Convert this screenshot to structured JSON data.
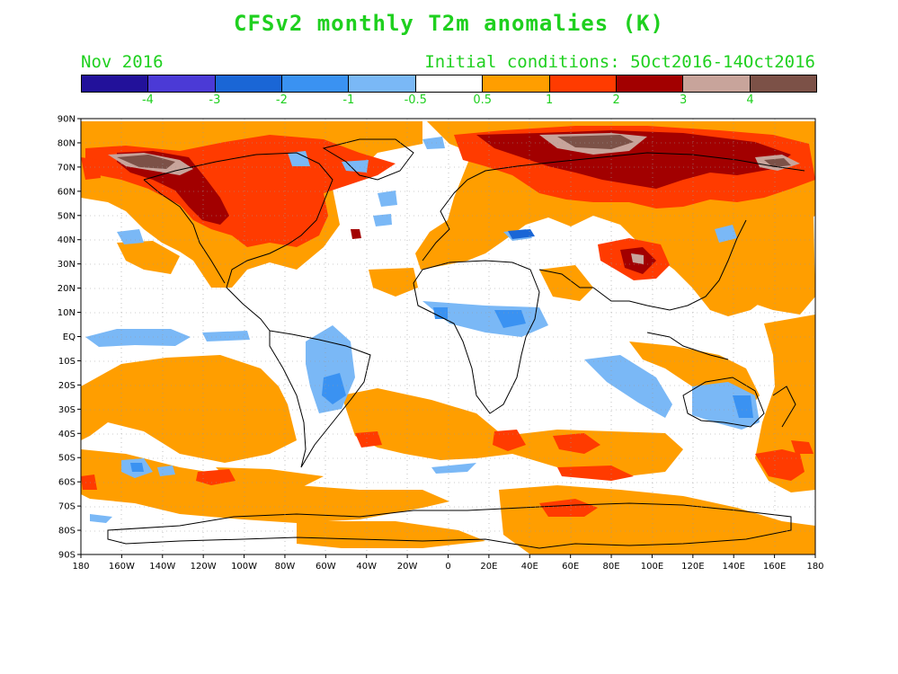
{
  "title": "CFSv2 monthly T2m anomalies (K)",
  "subtitle_left": "Nov 2016",
  "subtitle_right": "Initial conditions: 5Oct2016-14Oct2016",
  "colorbar": {
    "colors": [
      "#22119a",
      "#4b3ad6",
      "#1a66d6",
      "#3a92f2",
      "#7ab8f6",
      "#ffffff",
      "#ff9e00",
      "#ff3b00",
      "#a20000",
      "#c8a49b",
      "#7c5147"
    ],
    "labels": [
      "-4",
      "-3",
      "-2",
      "-1",
      "-0.5",
      "0.5",
      "1",
      "2",
      "3",
      "4"
    ]
  },
  "axes": {
    "lat_labels": [
      "90N",
      "80N",
      "70N",
      "60N",
      "50N",
      "40N",
      "30N",
      "20N",
      "10N",
      "EQ",
      "10S",
      "20S",
      "30S",
      "40S",
      "50S",
      "60S",
      "70S",
      "80S",
      "90S"
    ],
    "lon_labels": [
      "180",
      "160W",
      "140W",
      "120W",
      "100W",
      "80W",
      "60W",
      "40W",
      "20W",
      "0",
      "20E",
      "40E",
      "60E",
      "80E",
      "100E",
      "120E",
      "140E",
      "160E",
      "180"
    ]
  }
}
